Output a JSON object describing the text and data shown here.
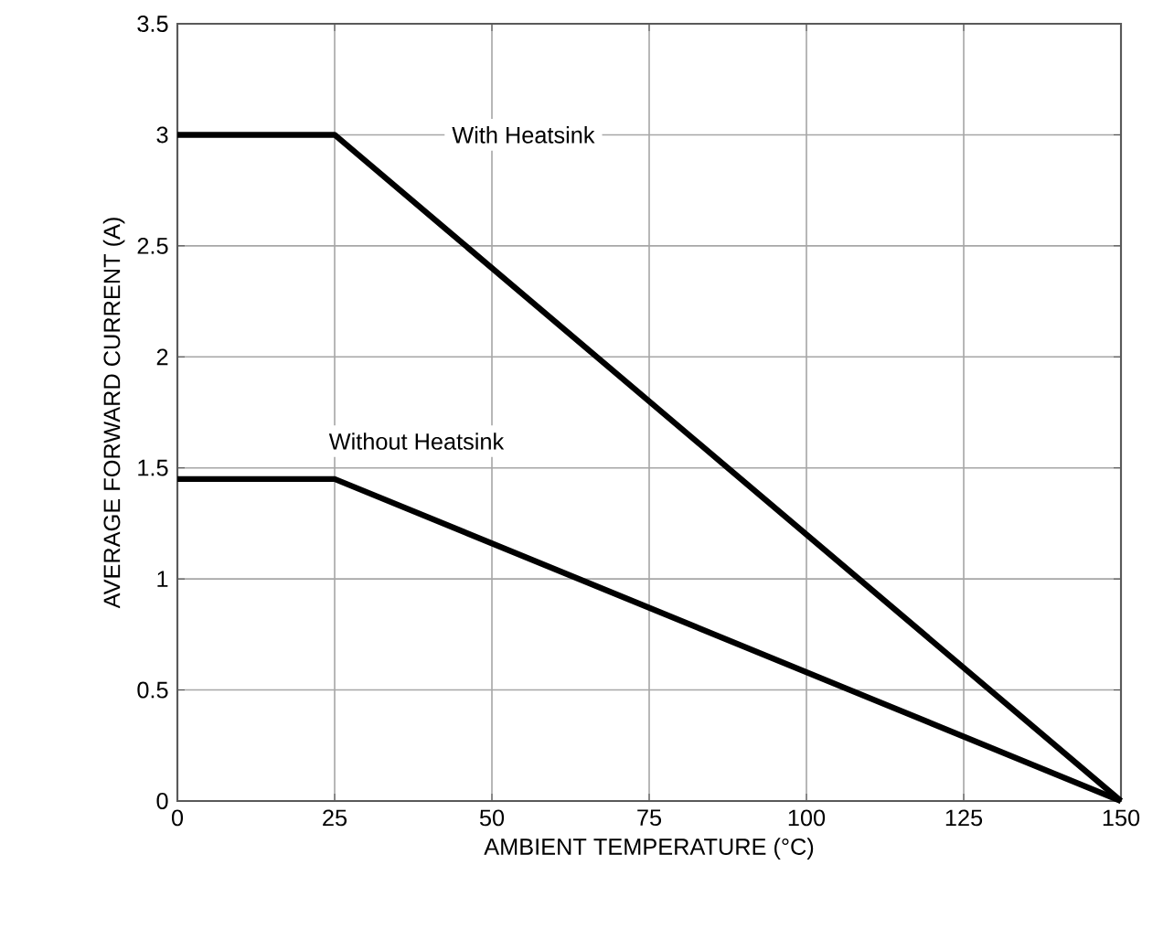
{
  "chart_data": {
    "type": "line",
    "xlabel": "AMBIENT TEMPERATURE (°C)",
    "ylabel": "AVERAGE FORWARD CURRENT (A)",
    "x": [
      0,
      25,
      150
    ],
    "series": [
      {
        "name": "With Heatsink",
        "color": "#000000",
        "values": [
          3,
          3,
          0
        ]
      },
      {
        "name": "Without Heatsink",
        "color": "#000000",
        "values": [
          1.45,
          1.45,
          0
        ]
      }
    ],
    "xlim": [
      0,
      150
    ],
    "xticks": [
      0,
      25,
      50,
      75,
      100,
      125,
      150
    ],
    "ylim": [
      0,
      3.5
    ],
    "yticks": [
      0,
      0.5,
      1,
      1.5,
      2,
      2.5,
      3,
      3.5
    ],
    "grid": true,
    "marker": "none",
    "line_style": "solid"
  }
}
